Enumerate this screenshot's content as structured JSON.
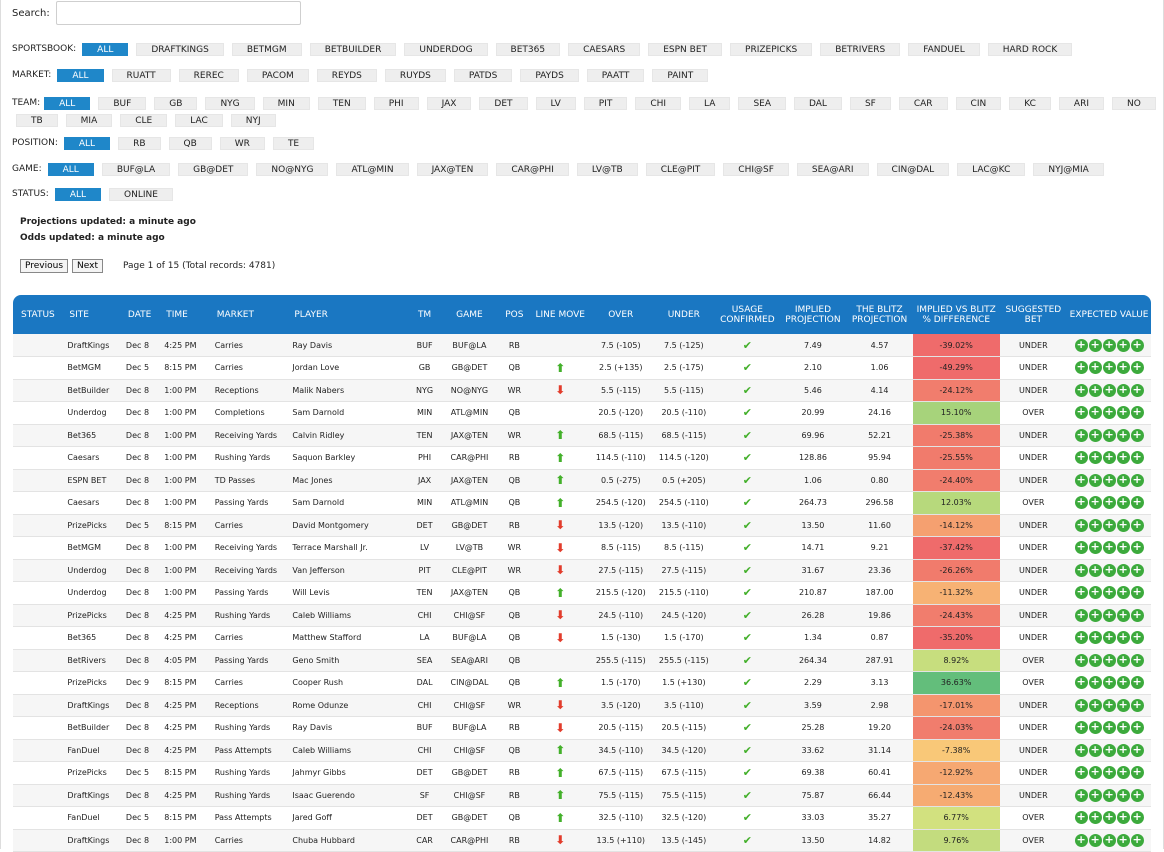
{
  "search": {
    "label": "Search:",
    "value": "",
    "placeholder": ""
  },
  "filters": {
    "sportsbook": {
      "label": "SPORTSBOOK:",
      "options": [
        "ALL",
        "DRAFTKINGS",
        "BETMGM",
        "BETBUILDER",
        "UNDERDOG",
        "BET365",
        "CAESARS",
        "ESPN BET",
        "PRIZEPICKS",
        "BETRIVERS",
        "FANDUEL",
        "HARD ROCK"
      ],
      "active": "ALL"
    },
    "market": {
      "label": "MARKET:",
      "options": [
        "ALL",
        "RUATT",
        "REREC",
        "PACOM",
        "REYDS",
        "RUYDS",
        "PATDS",
        "PAYDS",
        "PAATT",
        "PAINT"
      ],
      "active": "ALL"
    },
    "team": {
      "label": "TEAM:",
      "line1": [
        "ALL",
        "BUF",
        "GB",
        "NYG",
        "MIN",
        "TEN",
        "PHI",
        "JAX",
        "DET",
        "LV",
        "PIT",
        "CHI",
        "LA",
        "SEA",
        "DAL",
        "SF",
        "CAR",
        "CIN",
        "KC",
        "ARI",
        "NO",
        "ATL"
      ],
      "line2": [
        "TB",
        "MIA",
        "CLE",
        "LAC",
        "NYJ"
      ],
      "active": "ALL"
    },
    "position": {
      "label": "POSITION:",
      "options": [
        "ALL",
        "RB",
        "QB",
        "WR",
        "TE"
      ],
      "active": "ALL"
    },
    "game": {
      "label": "GAME:",
      "options": [
        "ALL",
        "BUF@LA",
        "GB@DET",
        "NO@NYG",
        "ATL@MIN",
        "JAX@TEN",
        "CAR@PHI",
        "LV@TB",
        "CLE@PIT",
        "CHI@SF",
        "SEA@ARI",
        "CIN@DAL",
        "LAC@KC",
        "NYJ@MIA"
      ],
      "active": "ALL"
    },
    "status": {
      "label": "STATUS:",
      "options": [
        "ALL",
        "ONLINE"
      ],
      "active": "ALL"
    }
  },
  "updates": {
    "projections": "Projections updated: a minute ago",
    "odds": "Odds updated: a minute ago"
  },
  "pager": {
    "previous": "Previous",
    "next": "Next",
    "info": "Page 1 of 15 (Total records: 4781)"
  },
  "table": {
    "headers": [
      "STATUS",
      "SITE",
      "DATE",
      "TIME",
      "MARKET",
      "PLAYER",
      "TM",
      "GAME",
      "POS",
      "LINE MOVE",
      "OVER",
      "UNDER",
      "USAGE CONFIRMED",
      "IMPLIED PROJECTION",
      "THE BLITZ PROJECTION",
      "IMPLIED VS BLITZ % DIFFERENCE",
      "SUGGESTED BET",
      "EXPECTED VALUE"
    ],
    "rows": [
      {
        "site": "DraftKings",
        "date": "Dec 8",
        "time": "4:25 PM",
        "market": "Carries",
        "player": "Ray Davis",
        "tm": "BUF",
        "game": "BUF@LA",
        "pos": "RB",
        "move": "",
        "over": "7.5 (-105)",
        "under": "7.5 (-125)",
        "implied": "7.49",
        "blitz": "4.57",
        "diff": "-39.02%",
        "color": "#ef6b6b",
        "bet": "UNDER"
      },
      {
        "site": "BetMGM",
        "date": "Dec 5",
        "time": "8:15 PM",
        "market": "Carries",
        "player": "Jordan Love",
        "tm": "GB",
        "game": "GB@DET",
        "pos": "QB",
        "move": "up",
        "over": "2.5 (+135)",
        "under": "2.5 (-175)",
        "implied": "2.10",
        "blitz": "1.06",
        "diff": "-49.29%",
        "color": "#ef6b6b",
        "bet": "UNDER"
      },
      {
        "site": "BetBuilder",
        "date": "Dec 8",
        "time": "1:00 PM",
        "market": "Receptions",
        "player": "Malik Nabers",
        "tm": "NYG",
        "game": "NO@NYG",
        "pos": "WR",
        "move": "down",
        "over": "5.5 (-115)",
        "under": "5.5 (-115)",
        "implied": "5.46",
        "blitz": "4.14",
        "diff": "-24.12%",
        "color": "#f17d6d",
        "bet": "UNDER"
      },
      {
        "site": "Underdog",
        "date": "Dec 8",
        "time": "1:00 PM",
        "market": "Completions",
        "player": "Sam Darnold",
        "tm": "MIN",
        "game": "ATL@MIN",
        "pos": "QB",
        "move": "",
        "over": "20.5 (-120)",
        "under": "20.5 (-110)",
        "implied": "20.99",
        "blitz": "24.16",
        "diff": "15.10%",
        "color": "#a7d37b",
        "bet": "OVER"
      },
      {
        "site": "Bet365",
        "date": "Dec 8",
        "time": "1:00 PM",
        "market": "Receiving Yards",
        "player": "Calvin Ridley",
        "tm": "TEN",
        "game": "JAX@TEN",
        "pos": "WR",
        "move": "up",
        "over": "68.5 (-115)",
        "under": "68.5 (-115)",
        "implied": "69.96",
        "blitz": "52.21",
        "diff": "-25.38%",
        "color": "#f17b6c",
        "bet": "UNDER"
      },
      {
        "site": "Caesars",
        "date": "Dec 8",
        "time": "1:00 PM",
        "market": "Rushing Yards",
        "player": "Saquon Barkley",
        "tm": "PHI",
        "game": "CAR@PHI",
        "pos": "RB",
        "move": "up",
        "over": "114.5 (-110)",
        "under": "114.5 (-120)",
        "implied": "128.86",
        "blitz": "95.94",
        "diff": "-25.55%",
        "color": "#f17b6c",
        "bet": "UNDER"
      },
      {
        "site": "ESPN BET",
        "date": "Dec 8",
        "time": "1:00 PM",
        "market": "TD Passes",
        "player": "Mac Jones",
        "tm": "JAX",
        "game": "JAX@TEN",
        "pos": "QB",
        "move": "up",
        "over": "0.5 (-275)",
        "under": "0.5 (+205)",
        "implied": "1.06",
        "blitz": "0.80",
        "diff": "-24.40%",
        "color": "#f17d6d",
        "bet": "UNDER"
      },
      {
        "site": "Caesars",
        "date": "Dec 8",
        "time": "1:00 PM",
        "market": "Passing Yards",
        "player": "Sam Darnold",
        "tm": "MIN",
        "game": "ATL@MIN",
        "pos": "QB",
        "move": "up",
        "over": "254.5 (-120)",
        "under": "254.5 (-110)",
        "implied": "264.73",
        "blitz": "296.58",
        "diff": "12.03%",
        "color": "#b7d97c",
        "bet": "OVER"
      },
      {
        "site": "PrizePicks",
        "date": "Dec 5",
        "time": "8:15 PM",
        "market": "Carries",
        "player": "David Montgomery",
        "tm": "DET",
        "game": "GB@DET",
        "pos": "RB",
        "move": "down",
        "over": "13.5 (-120)",
        "under": "13.5 (-110)",
        "implied": "13.50",
        "blitz": "11.60",
        "diff": "-14.12%",
        "color": "#f5a070",
        "bet": "UNDER"
      },
      {
        "site": "BetMGM",
        "date": "Dec 8",
        "time": "1:00 PM",
        "market": "Receiving Yards",
        "player": "Terrace Marshall Jr.",
        "tm": "LV",
        "game": "LV@TB",
        "pos": "WR",
        "move": "down",
        "over": "8.5 (-115)",
        "under": "8.5 (-115)",
        "implied": "14.71",
        "blitz": "9.21",
        "diff": "-37.42%",
        "color": "#ef6b6b",
        "bet": "UNDER"
      },
      {
        "site": "Underdog",
        "date": "Dec 8",
        "time": "1:00 PM",
        "market": "Receiving Yards",
        "player": "Van Jefferson",
        "tm": "PIT",
        "game": "CLE@PIT",
        "pos": "WR",
        "move": "down",
        "over": "27.5 (-115)",
        "under": "27.5 (-115)",
        "implied": "31.67",
        "blitz": "23.36",
        "diff": "-26.26%",
        "color": "#f17b6c",
        "bet": "UNDER"
      },
      {
        "site": "Underdog",
        "date": "Dec 8",
        "time": "1:00 PM",
        "market": "Passing Yards",
        "player": "Will Levis",
        "tm": "TEN",
        "game": "JAX@TEN",
        "pos": "QB",
        "move": "up",
        "over": "215.5 (-120)",
        "under": "215.5 (-110)",
        "implied": "210.87",
        "blitz": "187.00",
        "diff": "-11.32%",
        "color": "#f7b274",
        "bet": "UNDER"
      },
      {
        "site": "PrizePicks",
        "date": "Dec 8",
        "time": "4:25 PM",
        "market": "Rushing Yards",
        "player": "Caleb Williams",
        "tm": "CHI",
        "game": "CHI@SF",
        "pos": "QB",
        "move": "down",
        "over": "24.5 (-110)",
        "under": "24.5 (-120)",
        "implied": "26.28",
        "blitz": "19.86",
        "diff": "-24.43%",
        "color": "#f17d6d",
        "bet": "UNDER"
      },
      {
        "site": "Bet365",
        "date": "Dec 8",
        "time": "4:25 PM",
        "market": "Carries",
        "player": "Matthew Stafford",
        "tm": "LA",
        "game": "BUF@LA",
        "pos": "QB",
        "move": "down",
        "over": "1.5 (-130)",
        "under": "1.5 (-170)",
        "implied": "1.34",
        "blitz": "0.87",
        "diff": "-35.20%",
        "color": "#ef6b6b",
        "bet": "UNDER"
      },
      {
        "site": "BetRivers",
        "date": "Dec 8",
        "time": "4:05 PM",
        "market": "Passing Yards",
        "player": "Geno Smith",
        "tm": "SEA",
        "game": "SEA@ARI",
        "pos": "QB",
        "move": "",
        "over": "255.5 (-115)",
        "under": "255.5 (-115)",
        "implied": "264.34",
        "blitz": "287.91",
        "diff": "8.92%",
        "color": "#c7de7e",
        "bet": "OVER"
      },
      {
        "site": "PrizePicks",
        "date": "Dec 9",
        "time": "8:15 PM",
        "market": "Carries",
        "player": "Cooper Rush",
        "tm": "DAL",
        "game": "CIN@DAL",
        "pos": "QB",
        "move": "up",
        "over": "1.5 (-170)",
        "under": "1.5 (+130)",
        "implied": "2.29",
        "blitz": "3.13",
        "diff": "36.63%",
        "color": "#63be7b",
        "bet": "OVER"
      },
      {
        "site": "DraftKings",
        "date": "Dec 8",
        "time": "4:25 PM",
        "market": "Receptions",
        "player": "Rome Odunze",
        "tm": "CHI",
        "game": "CHI@SF",
        "pos": "WR",
        "move": "down",
        "over": "3.5 (-120)",
        "under": "3.5 (-110)",
        "implied": "3.59",
        "blitz": "2.98",
        "diff": "-17.01%",
        "color": "#f4956e",
        "bet": "UNDER"
      },
      {
        "site": "BetBuilder",
        "date": "Dec 8",
        "time": "4:25 PM",
        "market": "Rushing Yards",
        "player": "Ray Davis",
        "tm": "BUF",
        "game": "BUF@LA",
        "pos": "RB",
        "move": "down",
        "over": "20.5 (-115)",
        "under": "20.5 (-115)",
        "implied": "25.28",
        "blitz": "19.20",
        "diff": "-24.03%",
        "color": "#f17d6d",
        "bet": "UNDER"
      },
      {
        "site": "FanDuel",
        "date": "Dec 8",
        "time": "4:25 PM",
        "market": "Pass Attempts",
        "player": "Caleb Williams",
        "tm": "CHI",
        "game": "CHI@SF",
        "pos": "QB",
        "move": "up",
        "over": "34.5 (-110)",
        "under": "34.5 (-120)",
        "implied": "33.62",
        "blitz": "31.14",
        "diff": "-7.38%",
        "color": "#f9c878",
        "bet": "UNDER"
      },
      {
        "site": "PrizePicks",
        "date": "Dec 5",
        "time": "8:15 PM",
        "market": "Rushing Yards",
        "player": "Jahmyr Gibbs",
        "tm": "DET",
        "game": "GB@DET",
        "pos": "RB",
        "move": "up",
        "over": "67.5 (-115)",
        "under": "67.5 (-115)",
        "implied": "69.38",
        "blitz": "60.41",
        "diff": "-12.92%",
        "color": "#f6a872",
        "bet": "UNDER"
      },
      {
        "site": "DraftKings",
        "date": "Dec 8",
        "time": "4:25 PM",
        "market": "Rushing Yards",
        "player": "Isaac Guerendo",
        "tm": "SF",
        "game": "CHI@SF",
        "pos": "RB",
        "move": "up",
        "over": "75.5 (-115)",
        "under": "75.5 (-115)",
        "implied": "75.87",
        "blitz": "66.44",
        "diff": "-12.43%",
        "color": "#f6ab72",
        "bet": "UNDER"
      },
      {
        "site": "FanDuel",
        "date": "Dec 5",
        "time": "8:15 PM",
        "market": "Pass Attempts",
        "player": "Jared Goff",
        "tm": "DET",
        "game": "GB@DET",
        "pos": "QB",
        "move": "up",
        "over": "32.5 (-110)",
        "under": "32.5 (-120)",
        "implied": "33.03",
        "blitz": "35.27",
        "diff": "6.77%",
        "color": "#d2e17f",
        "bet": "OVER"
      },
      {
        "site": "DraftKings",
        "date": "Dec 8",
        "time": "1:00 PM",
        "market": "Carries",
        "player": "Chuba Hubbard",
        "tm": "CAR",
        "game": "CAR@PHI",
        "pos": "RB",
        "move": "down",
        "over": "13.5 (+110)",
        "under": "13.5 (-145)",
        "implied": "13.50",
        "blitz": "14.82",
        "diff": "9.76%",
        "color": "#c3dc7e",
        "bet": "OVER"
      }
    ]
  },
  "icons": {
    "up": "up-arrow-icon",
    "down": "down-arrow-icon",
    "check": "check-icon",
    "ev": "plus-circle-icon"
  },
  "colors": {
    "accent": "#1f87c9",
    "header": "#1a77c2",
    "up": "#43b02a",
    "down": "#e23c2b",
    "ev": "#3caa3c"
  }
}
